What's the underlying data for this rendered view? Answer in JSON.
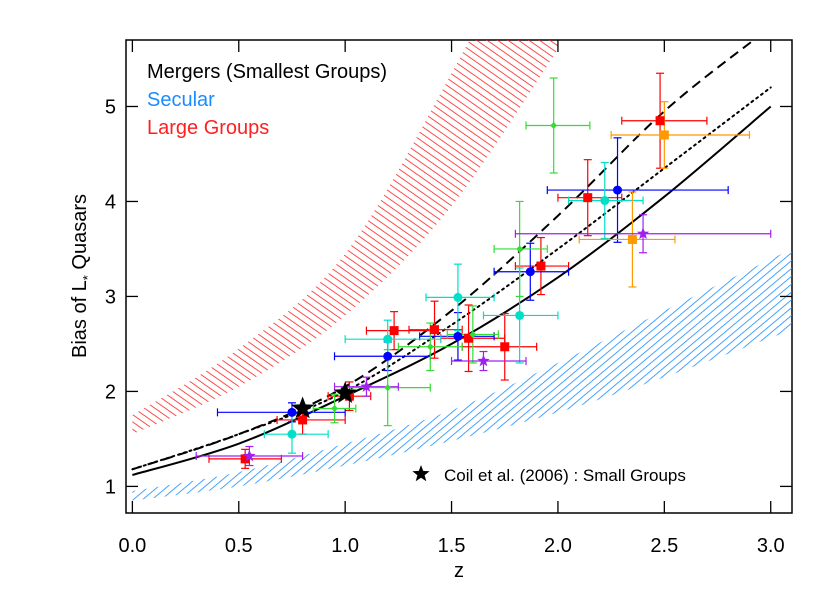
{
  "chart_data": {
    "type": "scatter",
    "x_label": "z",
    "y_label": {
      "main": "Bias of L",
      "sub": "*",
      "tail": " Quasars"
    },
    "xlim": [
      -0.03,
      3.1
    ],
    "ylim": [
      0.72,
      5.7
    ],
    "xticks": [
      {
        "value": 0,
        "label": "0.0"
      },
      0.5,
      {
        "value": 1,
        "label": "1.0"
      },
      1.5,
      {
        "value": 2,
        "label": "2.0"
      },
      2.5,
      {
        "value": 3,
        "label": "3.0"
      }
    ],
    "yticks": [
      1,
      2,
      3,
      4,
      5
    ],
    "annotations": [
      {
        "text": "Mergers (Smallest Groups)",
        "color": "#000000"
      },
      {
        "text": "Secular",
        "color": "#1a8cff"
      },
      {
        "text": "Large Groups",
        "color": "#ff2020"
      }
    ],
    "bands": [
      {
        "color": "#ff2020",
        "x": [
          0,
          0.5,
          1,
          1.5,
          2
        ],
        "lower": [
          1.55,
          2.05,
          2.8,
          3.95,
          5.6
        ],
        "upper": [
          1.75,
          2.45,
          3.45,
          5.35,
          7.5
        ]
      },
      {
        "color": "#1a8cff",
        "x": [
          0,
          0.5,
          1,
          1.5,
          2,
          2.5,
          3.1
        ],
        "lower": [
          0.85,
          1.0,
          1.22,
          1.48,
          1.78,
          2.15,
          2.65
        ],
        "upper": [
          0.95,
          1.15,
          1.45,
          1.8,
          2.3,
          2.85,
          3.5
        ]
      }
    ],
    "curves": [
      {
        "style": "solid",
        "x": [
          0,
          0.5,
          1,
          1.5,
          2,
          2.5,
          3
        ],
        "values": [
          1.12,
          1.45,
          1.95,
          2.5,
          3.2,
          4.05,
          5.0
        ]
      },
      {
        "style": "dotted",
        "x": [
          0,
          0.5,
          1,
          1.5,
          2,
          2.5,
          3
        ],
        "values": [
          1.18,
          1.55,
          2.0,
          2.7,
          3.5,
          4.35,
          5.2
        ]
      },
      {
        "style": "dashed",
        "x": [
          0,
          0.5,
          1,
          1.5,
          2,
          2.5,
          2.92
        ],
        "values": [
          1.18,
          1.55,
          2.05,
          2.85,
          3.85,
          4.95,
          5.7
        ]
      }
    ],
    "series": [
      {
        "color": "#ff0000",
        "marker": "square",
        "x": [
          0.53,
          0.8,
          1.02,
          1.23,
          1.42,
          1.58,
          1.75,
          1.92,
          2.14,
          2.48
        ],
        "values": [
          1.29,
          1.7,
          1.95,
          2.64,
          2.65,
          2.56,
          2.47,
          3.32,
          4.04,
          4.85
        ],
        "xerr": [
          [
            0.17,
            0.17
          ],
          [
            0.12,
            0.2
          ],
          [
            0.1,
            0.1
          ],
          [
            0.13,
            0.17
          ],
          [
            0.12,
            0.13
          ],
          [
            0.13,
            0.17
          ],
          [
            0.2,
            0.15
          ],
          [
            0.12,
            0.13
          ],
          [
            0.14,
            0.16
          ],
          [
            0.18,
            0.22
          ]
        ],
        "yerr": [
          0.1,
          0.15,
          0.15,
          0.2,
          0.3,
          0.35,
          0.35,
          0.3,
          0.4,
          0.5
        ]
      },
      {
        "color": "#0000ff",
        "marker": "circle",
        "x": [
          0.75,
          1.2,
          1.53,
          1.87,
          2.28
        ],
        "values": [
          1.78,
          2.37,
          2.58,
          3.26,
          4.12
        ],
        "xerr": [
          [
            0.35,
            0.25
          ],
          [
            0.25,
            0.2
          ],
          [
            0.18,
            0.17
          ],
          [
            0.17,
            0.18
          ],
          [
            0.33,
            0.52
          ]
        ],
        "yerr": [
          0.1,
          0.15,
          0.25,
          0.3,
          0.55
        ]
      },
      {
        "color": "#00e0c8",
        "marker": "circle",
        "x": [
          0.75,
          1.2,
          1.53,
          1.82,
          2.22
        ],
        "values": [
          1.55,
          2.55,
          2.99,
          2.8,
          4.01
        ],
        "xerr": [
          [
            0.13,
            0.17
          ],
          [
            0.2,
            0.25
          ],
          [
            0.15,
            0.17
          ],
          [
            0.17,
            0.18
          ],
          [
            0.17,
            0.18
          ]
        ],
        "yerr": [
          0.2,
          0.2,
          0.35,
          0.5,
          0.4
        ]
      },
      {
        "color": "#33dd33",
        "marker": "diamond",
        "x": [
          0.95,
          1.2,
          1.4,
          1.6,
          1.82,
          1.98
        ],
        "values": [
          1.82,
          2.04,
          2.47,
          2.6,
          3.5,
          4.8
        ],
        "xerr": [
          [
            0.1,
            0.1
          ],
          [
            0.2,
            0.2
          ],
          [
            0.15,
            0.15
          ],
          [
            0.12,
            0.12
          ],
          [
            0.12,
            0.13
          ],
          [
            0.13,
            0.17
          ]
        ],
        "yerr": [
          0.15,
          0.4,
          0.25,
          0.3,
          0.5,
          0.5
        ]
      },
      {
        "color": "#ff9900",
        "marker": "square",
        "x": [
          2.5,
          2.35
        ],
        "values": [
          4.7,
          3.6
        ],
        "xerr": [
          [
            0.25,
            0.4
          ],
          [
            0.25,
            0.2
          ]
        ],
        "yerr": [
          0.35,
          0.5
        ]
      },
      {
        "color": "#a020f0",
        "marker": "star",
        "x": [
          0.55,
          1.1,
          1.65,
          2.4
        ],
        "values": [
          1.32,
          2.05,
          2.32,
          3.66
        ],
        "xerr": [
          [
            0.25,
            0.25
          ],
          [
            0.15,
            0.15
          ],
          [
            0.15,
            0.2
          ],
          [
            0.6,
            0.6
          ]
        ],
        "yerr": [
          0.1,
          0.1,
          0.1,
          0.2
        ]
      },
      {
        "name": "Coil et al. (2006) : Small Groups",
        "color": "#000000",
        "marker": "bigstar",
        "x": [
          0.8,
          1.0
        ],
        "values": [
          1.82,
          1.98
        ]
      }
    ]
  }
}
